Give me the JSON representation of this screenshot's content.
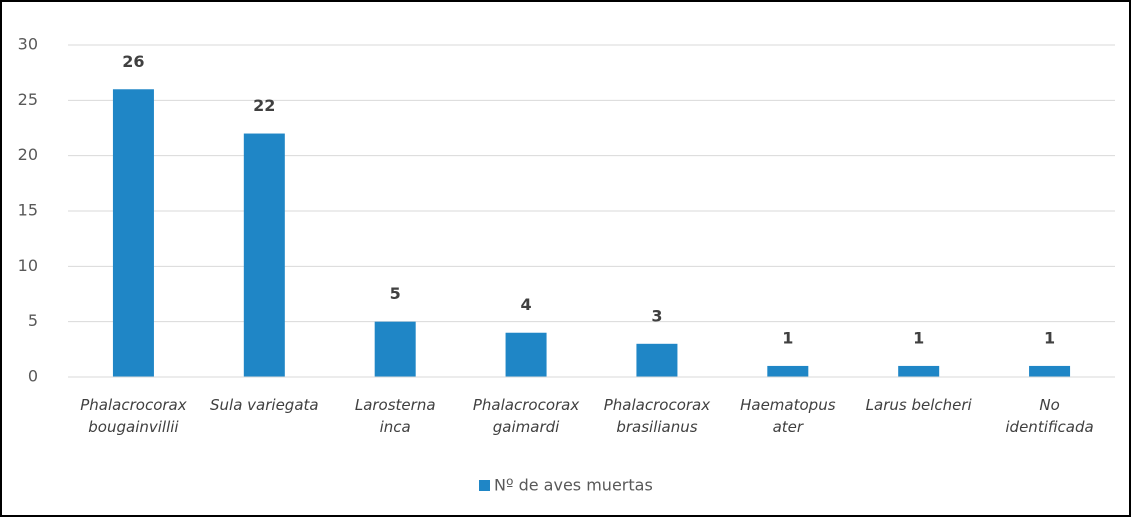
{
  "chart_data": {
    "type": "bar",
    "categories": [
      "Phalacrocorax\nbougainvillii",
      "Sula variegata",
      "Larosterna\ninca",
      "Phalacrocorax\ngaimardi",
      "Phalacrocorax\nbrasilianus",
      "Haematopus\nater",
      "Larus belcheri",
      "No\nidentificada"
    ],
    "series": [
      {
        "name": "Nº de aves muertas",
        "color": "#1f86c6",
        "values": [
          26,
          22,
          5,
          4,
          3,
          1,
          1,
          1
        ]
      }
    ],
    "ylim": [
      0,
      30
    ],
    "yticks": [
      0,
      5,
      10,
      15,
      20,
      25,
      30
    ],
    "grid": true,
    "legend": "bottom"
  }
}
